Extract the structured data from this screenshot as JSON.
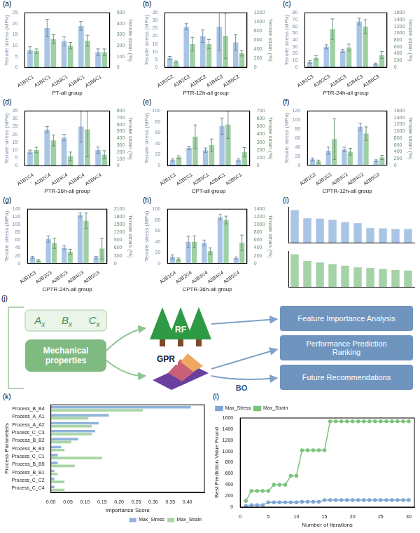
{
  "chart_data": [
    {
      "panel": "(a)",
      "type": "bar",
      "x_label": "PT-all group",
      "categories": [
        "A1B1C1",
        "A1B2C1",
        "A1B3C1",
        "A1B4C1",
        "A1B5C1"
      ],
      "y_label": "Tensile stress (MPa)",
      "y2_label": "Tensile strain (%)",
      "ylim": [
        0,
        25
      ],
      "yticks": [
        0,
        5,
        10,
        15,
        20,
        25
      ],
      "y2lim": [
        0,
        500
      ],
      "y2ticks": [
        0,
        100,
        200,
        300,
        400,
        500
      ],
      "series": [
        {
          "color": "#a9c5e6",
          "values": [
            8,
            18,
            12,
            19,
            7
          ],
          "errors": [
            1.5,
            4,
            2,
            2,
            1.5
          ]
        },
        {
          "color": "#9fd0a5",
          "axis": "y2",
          "values": [
            150,
            260,
            200,
            245,
            140
          ],
          "errors": [
            20,
            40,
            30,
            50,
            30
          ]
        }
      ]
    },
    {
      "panel": "(b)",
      "type": "bar",
      "x_label": "PTR-12h-all group",
      "categories": [
        "A1B1C2",
        "A1B2C2",
        "A1B3C2",
        "A1B4C2",
        "A1B5C2"
      ],
      "y_label": "Tensile stress (MPa)",
      "y2_label": "Tensile strain (%)",
      "ylim": [
        0,
        35
      ],
      "yticks": [
        0,
        5,
        10,
        15,
        20,
        25,
        30,
        35
      ],
      "y2lim": [
        0,
        1200
      ],
      "y2ticks": [
        0,
        200,
        400,
        600,
        800,
        1000,
        1200
      ],
      "series": [
        {
          "color": "#a9c5e6",
          "values": [
            6,
            26,
            20,
            26,
            16
          ],
          "errors": [
            1,
            2,
            4,
            15,
            5
          ]
        },
        {
          "color": "#9fd0a5",
          "axis": "y2",
          "values": [
            120,
            510,
            510,
            690,
            310
          ],
          "errors": [
            20,
            150,
            100,
            500,
            60
          ]
        }
      ]
    },
    {
      "panel": "(c)",
      "type": "bar",
      "x_label": "PTR-24h-all group",
      "categories": [
        "A1B1C3",
        "A1B2C3",
        "A1B3C3",
        "A1B4C3",
        "A1B5C3"
      ],
      "y_label": "Tensile stress (MPa)",
      "y2_label": "Tensile strain (%)",
      "ylim": [
        0,
        80
      ],
      "yticks": [
        0,
        10,
        20,
        30,
        40,
        50,
        60,
        70,
        80
      ],
      "y2lim": [
        0,
        1600
      ],
      "y2ticks": [
        0,
        200,
        400,
        600,
        800,
        1000,
        1200,
        1400,
        1600
      ],
      "series": [
        {
          "color": "#a9c5e6",
          "values": [
            8,
            30,
            24,
            67,
            5
          ],
          "errors": [
            2,
            3,
            2,
            5,
            1
          ]
        },
        {
          "color": "#9fd0a5",
          "axis": "y2",
          "values": [
            280,
            1120,
            580,
            1200,
            360
          ],
          "errors": [
            60,
            300,
            100,
            200,
            100
          ]
        }
      ]
    },
    {
      "panel": "(d)",
      "type": "bar",
      "x_label": "PTR-36h-all group",
      "categories": [
        "A1B1C4",
        "A1B2C4",
        "A1B3C4",
        "A1B4C4",
        "A1B5C4"
      ],
      "y_label": "Tensile stress (MPa)",
      "y2_label": "Tensile strain (%)",
      "ylim": [
        0,
        35
      ],
      "yticks": [
        0,
        5,
        10,
        15,
        20,
        25,
        30,
        35
      ],
      "y2lim": [
        0,
        800
      ],
      "y2ticks": [
        0,
        100,
        200,
        300,
        400,
        500,
        600,
        700,
        800
      ],
      "series": [
        {
          "color": "#a9c5e6",
          "values": [
            9,
            23,
            18,
            25,
            10
          ],
          "errors": [
            1,
            2,
            2,
            10,
            2
          ]
        },
        {
          "color": "#9fd0a5",
          "axis": "y2",
          "values": [
            230,
            370,
            140,
            530,
            160
          ],
          "errors": [
            40,
            80,
            60,
            400,
            60
          ]
        }
      ]
    },
    {
      "panel": "(e)",
      "type": "bar",
      "x_label": "CPT-all group",
      "categories": [
        "A2B1C1",
        "A2B2C1",
        "A2B3C1",
        "A2B4C1",
        "A2B5C1"
      ],
      "y_label": "Tensile stress (MPa)",
      "y2_label": "Tensile strain (%)",
      "ylim": [
        0,
        100
      ],
      "yticks": [
        0,
        20,
        40,
        60,
        80,
        100
      ],
      "y2lim": [
        0,
        700
      ],
      "y2ticks": [
        0,
        100,
        200,
        300,
        400,
        500,
        600,
        700
      ],
      "series": [
        {
          "color": "#a9c5e6",
          "values": [
            10,
            32,
            28,
            72,
            10
          ],
          "errors": [
            2,
            3,
            4,
            15,
            2
          ]
        },
        {
          "color": "#9fd0a5",
          "axis": "y2",
          "values": [
            105,
            370,
            260,
            525,
            170
          ],
          "errors": [
            20,
            150,
            80,
            180,
            60
          ]
        }
      ]
    },
    {
      "panel": "(f)",
      "type": "bar",
      "x_label": "CPTR-12h-all group",
      "categories": [
        "A2B1C2",
        "A2B2C2",
        "A2B3C2",
        "A2B4C2",
        "A2B5C2"
      ],
      "y_label": "Tensile stress (MPa)",
      "y2_label": "Tensile strain (%)",
      "ylim": [
        0,
        120
      ],
      "yticks": [
        0,
        20,
        40,
        60,
        80,
        100,
        120
      ],
      "y2lim": [
        0,
        1600
      ],
      "y2ticks": [
        0,
        200,
        400,
        600,
        800,
        1000,
        1200,
        1400,
        1600
      ],
      "series": [
        {
          "color": "#a9c5e6",
          "values": [
            13,
            32,
            35,
            85,
            10
          ],
          "errors": [
            3,
            8,
            5,
            8,
            2
          ]
        },
        {
          "color": "#9fd0a5",
          "axis": "y2",
          "values": [
            110,
            770,
            400,
            930,
            230
          ],
          "errors": [
            40,
            600,
            100,
            200,
            60
          ]
        }
      ]
    },
    {
      "panel": "(g)",
      "type": "bar",
      "x_label": "CPTR-24h-all group",
      "categories": [
        "A2B1C3",
        "A2B2C3",
        "A2B3C3",
        "A2B4C3",
        "A2B5C3"
      ],
      "y_label": "Tensile stress (MPa)",
      "y2_label": "Tensile strain (%)",
      "ylim": [
        0,
        140
      ],
      "yticks": [
        0,
        20,
        40,
        60,
        80,
        100,
        120,
        140
      ],
      "y2lim": [
        0,
        2100
      ],
      "y2ticks": [
        0,
        300,
        600,
        900,
        1200,
        1500,
        1800,
        2100
      ],
      "series": [
        {
          "color": "#a9c5e6",
          "values": [
            15,
            63,
            41,
            125,
            15
          ],
          "errors": [
            3,
            8,
            5,
            5,
            3
          ]
        },
        {
          "color": "#9fd0a5",
          "axis": "y2",
          "values": [
            120,
            780,
            450,
            1650,
            570
          ],
          "errors": [
            30,
            200,
            100,
            300,
            400
          ]
        }
      ]
    },
    {
      "panel": "(h)",
      "type": "bar",
      "x_label": "CPTR-36h-all group",
      "categories": [
        "A2B1C4",
        "A2B2C4",
        "A2B3C4",
        "A2B4C4",
        "A2B5C4"
      ],
      "y_label": "Tensile stress (MPa)",
      "y2_label": "Tensile strain (%)",
      "ylim": [
        0,
        100
      ],
      "yticks": [
        0,
        20,
        40,
        60,
        80,
        100
      ],
      "y2lim": [
        0,
        1400
      ],
      "y2ticks": [
        0,
        200,
        400,
        600,
        800,
        1000,
        1200,
        1400
      ],
      "series": [
        {
          "color": "#a9c5e6",
          "values": [
            12,
            40,
            38,
            85,
            10
          ],
          "errors": [
            4,
            10,
            5,
            5,
            2
          ]
        },
        {
          "color": "#9fd0a5",
          "axis": "y2",
          "values": [
            110,
            560,
            320,
            1120,
            530
          ],
          "errors": [
            30,
            150,
            80,
            100,
            200
          ]
        }
      ]
    },
    {
      "panel": "(i)",
      "type": "bar",
      "categories": [
        null,
        null,
        null,
        null,
        null,
        null,
        null,
        null,
        null,
        null
      ],
      "ylim": [
        0,
        1.1
      ],
      "tick_labels": false,
      "series": [
        {
          "color": "#a9c5e6",
          "values": [
            1.0,
            0.75,
            0.74,
            0.7,
            0.63,
            0.6,
            0.45,
            0.44,
            0.42,
            0.42
          ]
        }
      ]
    },
    {
      "type": "bar",
      "categories": [
        null,
        null,
        null,
        null,
        null,
        null,
        null,
        null,
        null,
        null
      ],
      "ylim": [
        0,
        1.1
      ],
      "tick_labels": false,
      "series": [
        {
          "color": "#a5d3a8",
          "values": [
            1.0,
            0.8,
            0.75,
            0.7,
            0.65,
            0.6,
            0.58,
            0.55,
            0.52,
            0.5
          ]
        }
      ]
    },
    {
      "panel": "(k)",
      "type": "bar",
      "orientation": "horizontal",
      "x_label": "Importance Score",
      "y_label": "Process Parameters",
      "categories": [
        "Process_B_B4",
        "Process_A_A1",
        "Process_A_A2",
        "Process_C_C3",
        "Process_B_B2",
        "Process_B_B3",
        "Process_C_C1",
        "Process_B_B5",
        "Process_B_B1",
        "Process_C_C2",
        "Process_C_C4"
      ],
      "xlim": [
        0,
        0.45
      ],
      "xticks": [
        {
          "value": 0,
          "label": "0.00"
        },
        0.05,
        {
          "value": 0.1,
          "label": "0.10"
        },
        0.15,
        {
          "value": 0.2,
          "label": "0.20"
        },
        0.25,
        {
          "value": 0.3,
          "label": "0.30"
        },
        0.35,
        {
          "value": 0.4,
          "label": "0.40"
        }
      ],
      "legend": "lower right",
      "series": [
        {
          "name": "Max_Stress",
          "color": "#8fb3dd",
          "values": [
            0.41,
            0.17,
            0.14,
            0.13,
            0.08,
            0.03,
            0.02,
            0.02,
            0.01,
            0.01,
            0.01
          ]
        },
        {
          "name": "Max_Strain",
          "color": "#a8d5a2",
          "values": [
            0.27,
            0.11,
            0.12,
            0.12,
            0.06,
            0.04,
            0.15,
            0.07,
            0.02,
            0.04,
            0.04
          ]
        }
      ]
    },
    {
      "panel": "(l)",
      "type": "line",
      "x_label": "Number of Iterations",
      "y_label": "Best Prediction Value Found",
      "x": [
        1,
        2,
        3,
        4,
        5,
        6,
        7,
        8,
        9,
        10,
        11,
        12,
        13,
        14,
        15,
        16,
        17,
        18,
        19,
        20,
        21,
        22,
        23,
        24,
        25,
        26,
        27,
        28,
        29,
        30
      ],
      "xlim": [
        0,
        31
      ],
      "xticks": [
        0,
        5,
        10,
        15,
        20,
        25,
        30
      ],
      "ylim": [
        0,
        1600
      ],
      "yticks": [
        0,
        200,
        400,
        600,
        800,
        1000,
        1200,
        1400,
        1600
      ],
      "legend": "upper left",
      "marker": "circle",
      "line_style": "solid",
      "series": [
        {
          "name": "Max_Stress",
          "color": "#7fa7d6",
          "values": [
            20,
            35,
            35,
            35,
            85,
            85,
            85,
            85,
            85,
            85,
            95,
            95,
            95,
            95,
            125,
            125,
            125,
            125,
            125,
            125,
            125,
            125,
            125,
            125,
            125,
            125,
            125,
            125,
            125,
            125
          ]
        },
        {
          "name": "Max_Strain",
          "color": "#7cc27c",
          "values": [
            110,
            290,
            290,
            290,
            290,
            400,
            400,
            400,
            560,
            560,
            1020,
            1020,
            1020,
            1020,
            1020,
            1540,
            1540,
            1540,
            1540,
            1540,
            1540,
            1540,
            1540,
            1540,
            1540,
            1540,
            1540,
            1540,
            1540,
            1540
          ]
        }
      ]
    }
  ],
  "diagram": {
    "panel": "(j)",
    "inputs": [
      {
        "text": "A",
        "sub": "x"
      },
      {
        "text": "B",
        "sub": "x"
      },
      {
        "text": "C",
        "sub": "x"
      }
    ],
    "properties": "Mechanical properties",
    "models": [
      "RF",
      "GPR"
    ],
    "optimizer": "BO",
    "outputs": [
      "Feature Importance Analysis",
      "Performance Prediction Ranking",
      "Future Recommendations"
    ]
  }
}
